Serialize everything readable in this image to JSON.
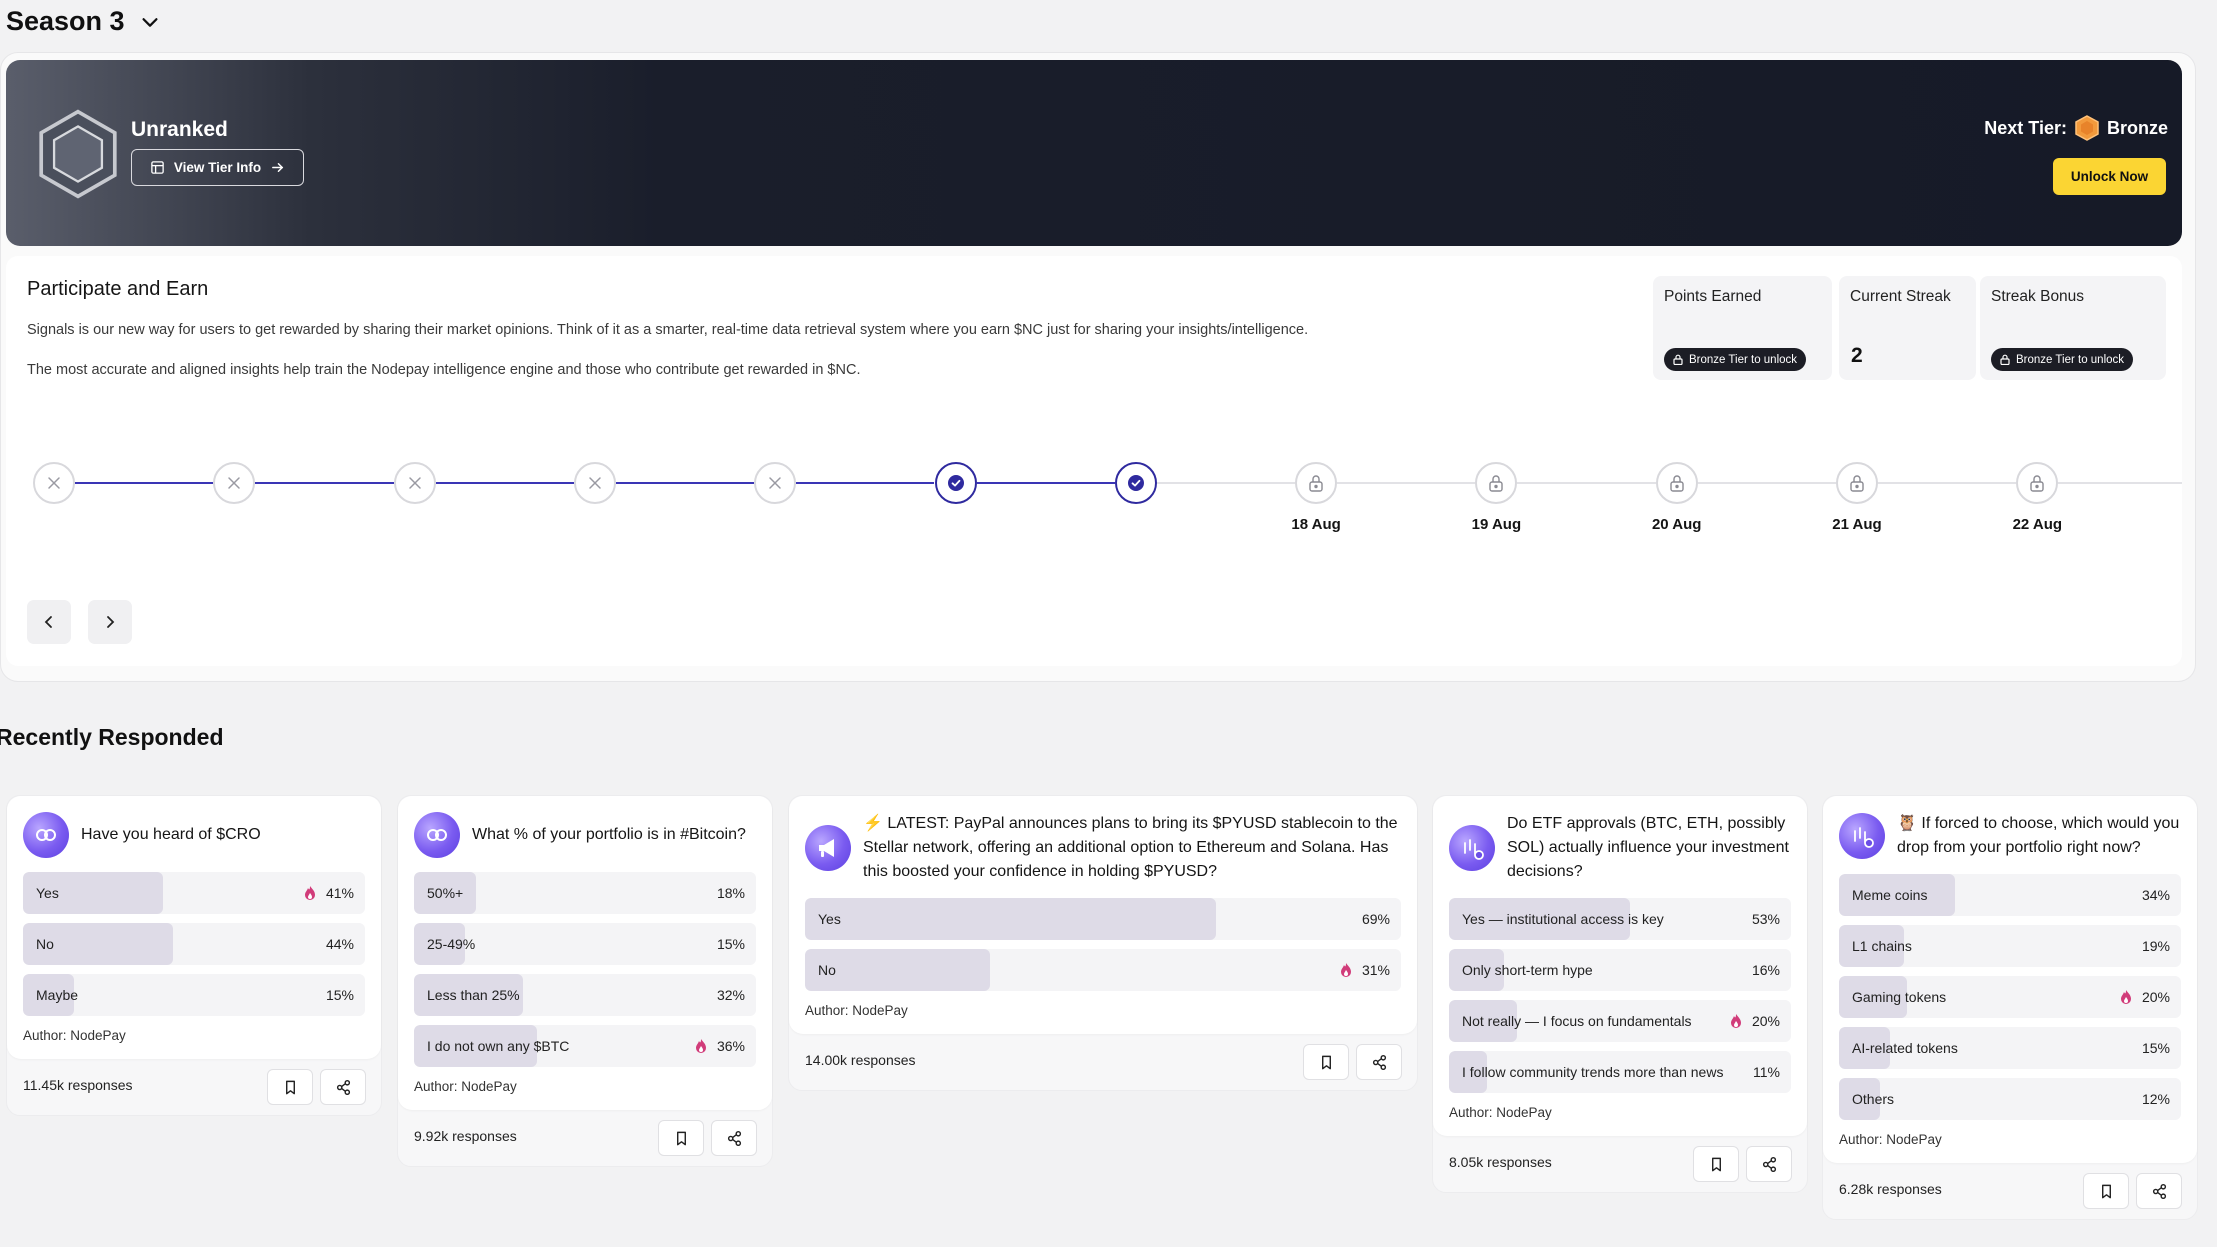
{
  "season": {
    "title": "Season 3"
  },
  "tier": {
    "current": "Unranked",
    "view_info_label": "View Tier Info",
    "next_tier_label": "Next Tier:",
    "next_tier_name": "Bronze",
    "unlock_label": "Unlock Now"
  },
  "participate": {
    "title": "Participate and Earn",
    "desc1": "Signals is our new way for users to get rewarded by sharing their market opinions. Think of it as a smarter, real-time data retrieval system where you earn $NC just for sharing your insights/intelligence.",
    "desc2": "The most accurate and aligned insights help train the Nodepay intelligence engine and those who contribute get rewarded in $NC."
  },
  "stats": {
    "points_label": "Points Earned",
    "points_lock": "Bronze Tier to unlock",
    "streak_label": "Current Streak",
    "streak_value": "2",
    "bonus_label": "Streak Bonus",
    "bonus_lock": "Bronze Tier to unlock"
  },
  "timeline": {
    "nodes": [
      {
        "state": "missed"
      },
      {
        "state": "missed"
      },
      {
        "state": "missed"
      },
      {
        "state": "missed"
      },
      {
        "state": "missed"
      },
      {
        "state": "done"
      },
      {
        "state": "done"
      },
      {
        "state": "locked",
        "date": "18 Aug"
      },
      {
        "state": "locked",
        "date": "19 Aug"
      },
      {
        "state": "locked",
        "date": "20 Aug"
      },
      {
        "state": "locked",
        "date": "21 Aug"
      },
      {
        "state": "locked",
        "date": "22 Aug"
      }
    ],
    "active_color": "#3a35b5",
    "inactive_color": "#e2e2e6"
  },
  "recent": {
    "title": "Recently Responded",
    "cards": [
      {
        "question": "Have you heard of $CRO",
        "avatar_icon": "nodepay-logo-icon",
        "options": [
          {
            "label": "Yes",
            "pct": "41%",
            "value": 41,
            "picked": true
          },
          {
            "label": "No",
            "pct": "44%",
            "value": 44,
            "picked": false
          },
          {
            "label": "Maybe",
            "pct": "15%",
            "value": 15,
            "picked": false
          }
        ],
        "author": "Author: NodePay",
        "responses": "11.45k responses"
      },
      {
        "question": "What % of your portfolio is in #Bitcoin?",
        "avatar_icon": "nodepay-logo-icon",
        "options": [
          {
            "label": "50%+",
            "pct": "18%",
            "value": 18,
            "picked": false
          },
          {
            "label": "25-49%",
            "pct": "15%",
            "value": 15,
            "picked": false
          },
          {
            "label": "Less than 25%",
            "pct": "32%",
            "value": 32,
            "picked": false
          },
          {
            "label": "I do not own any $BTC",
            "pct": "36%",
            "value": 36,
            "picked": true
          }
        ],
        "author": "Author: NodePay",
        "responses": "9.92k responses"
      },
      {
        "question": "⚡ LATEST: PayPal announces plans to bring its $PYUSD stablecoin to the Stellar network, offering an additional option to Ethereum and Solana. Has this boosted your confidence in holding $PYUSD?",
        "avatar_icon": "megaphone-icon",
        "options": [
          {
            "label": "Yes",
            "pct": "69%",
            "value": 69,
            "picked": false
          },
          {
            "label": "No",
            "pct": "31%",
            "value": 31,
            "picked": true
          }
        ],
        "author": "Author: NodePay",
        "responses": "14.00k responses"
      },
      {
        "question": "Do ETF approvals (BTC, ETH, possibly SOL) actually influence your investment decisions?",
        "avatar_icon": "chart-coin-icon",
        "options": [
          {
            "label": "Yes — institutional access is key",
            "pct": "53%",
            "value": 53,
            "picked": false
          },
          {
            "label": "Only short-term hype",
            "pct": "16%",
            "value": 16,
            "picked": false
          },
          {
            "label": "Not really — I focus on fundamentals",
            "pct": "20%",
            "value": 20,
            "picked": true
          },
          {
            "label": "I follow community trends more than news",
            "pct": "11%",
            "value": 11,
            "picked": false
          }
        ],
        "author": "Author: NodePay",
        "responses": "8.05k responses"
      },
      {
        "question": "🦉 If forced to choose, which would you drop from your portfolio right now?",
        "avatar_icon": "chart-coin-icon",
        "options": [
          {
            "label": "Meme coins",
            "pct": "34%",
            "value": 34,
            "picked": false
          },
          {
            "label": "L1 chains",
            "pct": "19%",
            "value": 19,
            "picked": false
          },
          {
            "label": "Gaming tokens",
            "pct": "20%",
            "value": 20,
            "picked": true
          },
          {
            "label": "AI-related tokens",
            "pct": "15%",
            "value": 15,
            "picked": false
          },
          {
            "label": "Others",
            "pct": "12%",
            "value": 12,
            "picked": false
          }
        ],
        "author": "Author: NodePay",
        "responses": "6.28k responses"
      }
    ]
  }
}
